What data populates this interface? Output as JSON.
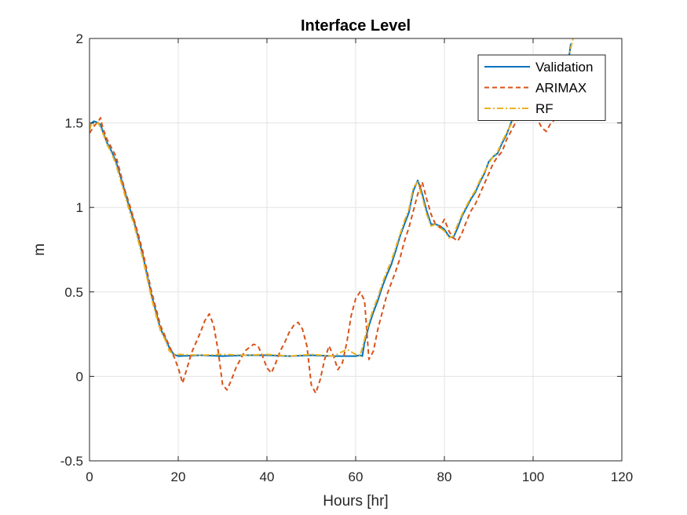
{
  "chart_data": {
    "type": "line",
    "title": "Interface Level",
    "xlabel": "Hours [hr]",
    "ylabel": "m",
    "xlim": [
      0,
      120
    ],
    "ylim": [
      -0.5,
      2
    ],
    "xticks": [
      0,
      20,
      40,
      60,
      80,
      100,
      120
    ],
    "yticks": [
      -0.5,
      0,
      0.5,
      1,
      1.5,
      2
    ],
    "xtick_labels": [
      "0",
      "20",
      "40",
      "60",
      "80",
      "100",
      "120"
    ],
    "ytick_labels": [
      "-0.5",
      "0",
      "0.5",
      "1",
      "1.5",
      "2"
    ],
    "grid": true,
    "legend_position": "top-right",
    "series": [
      {
        "name": "Validation",
        "color": "#0072BD",
        "dash": "solid",
        "x": [
          0,
          0.5,
          1,
          2,
          2.5,
          3,
          4,
          5,
          6,
          7,
          8,
          9,
          10,
          11,
          12,
          13,
          14,
          15,
          16,
          17,
          18,
          19,
          20,
          25,
          30,
          35,
          40,
          45,
          50,
          55,
          60,
          61,
          61.5,
          62,
          63,
          64,
          65,
          66,
          67,
          68,
          69,
          70,
          71,
          72,
          73,
          74,
          75,
          76,
          77,
          78,
          79,
          80,
          81,
          82,
          83,
          84,
          85,
          86,
          87,
          88,
          89,
          90,
          91,
          92,
          93,
          94,
          95,
          96,
          97,
          98,
          99,
          100,
          101,
          102,
          103,
          104,
          105,
          106,
          107,
          108,
          108.5
        ],
        "y": [
          1.47,
          1.5,
          1.51,
          1.5,
          1.49,
          1.45,
          1.38,
          1.33,
          1.27,
          1.18,
          1.09,
          1.0,
          0.92,
          0.82,
          0.72,
          0.6,
          0.48,
          0.38,
          0.28,
          0.23,
          0.17,
          0.13,
          0.12,
          0.125,
          0.12,
          0.125,
          0.125,
          0.12,
          0.125,
          0.12,
          0.12,
          0.125,
          0.12,
          0.2,
          0.3,
          0.38,
          0.45,
          0.53,
          0.6,
          0.66,
          0.74,
          0.83,
          0.9,
          0.97,
          1.1,
          1.16,
          1.08,
          0.98,
          0.9,
          0.9,
          0.89,
          0.87,
          0.83,
          0.82,
          0.88,
          0.95,
          1.0,
          1.05,
          1.09,
          1.15,
          1.2,
          1.27,
          1.3,
          1.32,
          1.38,
          1.43,
          1.5,
          1.56,
          1.6,
          1.63,
          1.68,
          1.63,
          1.57,
          1.55,
          1.53,
          1.52,
          1.52,
          1.6,
          1.74,
          1.87,
          1.97
        ]
      },
      {
        "name": "ARIMAX",
        "color": "#D95319",
        "dash": "6,4",
        "x": [
          0,
          1,
          2,
          2.5,
          3,
          4,
          5,
          6,
          7,
          8,
          9,
          10,
          11,
          12,
          13,
          14,
          15,
          16,
          17,
          18,
          19,
          20,
          21,
          22,
          23,
          24,
          25,
          26,
          27,
          28,
          29,
          30,
          31,
          32,
          33,
          34,
          35,
          36,
          37,
          38,
          39,
          40,
          41,
          42,
          43,
          44,
          45,
          46,
          47,
          48,
          49,
          50,
          51,
          52,
          53,
          54,
          55,
          56,
          57,
          58,
          59,
          60,
          61,
          62,
          63,
          64,
          65,
          66,
          67,
          68,
          69,
          70,
          71,
          72,
          73,
          74,
          75,
          76,
          77,
          78,
          79,
          80,
          81,
          82,
          83,
          84,
          85,
          86,
          87,
          88,
          89,
          90,
          91,
          92,
          93,
          94,
          95,
          96,
          97,
          98,
          99,
          100,
          101,
          102,
          103,
          104,
          105,
          106,
          107,
          108
        ],
        "y": [
          1.44,
          1.48,
          1.51,
          1.53,
          1.47,
          1.4,
          1.35,
          1.3,
          1.2,
          1.1,
          1.02,
          0.93,
          0.84,
          0.74,
          0.62,
          0.5,
          0.4,
          0.3,
          0.24,
          0.18,
          0.12,
          0.05,
          -0.04,
          0.05,
          0.14,
          0.2,
          0.26,
          0.33,
          0.37,
          0.3,
          0.15,
          -0.05,
          -0.08,
          -0.02,
          0.05,
          0.1,
          0.15,
          0.17,
          0.19,
          0.18,
          0.12,
          0.05,
          0.02,
          0.08,
          0.15,
          0.2,
          0.26,
          0.3,
          0.32,
          0.28,
          0.18,
          -0.05,
          -0.1,
          -0.02,
          0.1,
          0.18,
          0.12,
          0.04,
          0.08,
          0.2,
          0.36,
          0.46,
          0.5,
          0.45,
          0.1,
          0.15,
          0.28,
          0.38,
          0.48,
          0.55,
          0.62,
          0.7,
          0.8,
          0.88,
          0.98,
          1.08,
          1.15,
          1.05,
          0.96,
          0.9,
          0.88,
          0.93,
          0.86,
          0.82,
          0.8,
          0.85,
          0.92,
          0.98,
          1.02,
          1.08,
          1.14,
          1.2,
          1.26,
          1.3,
          1.33,
          1.4,
          1.45,
          1.5,
          1.55,
          1.6,
          1.58,
          1.55,
          1.52,
          1.47,
          1.45,
          1.5,
          1.52,
          1.58,
          1.7,
          1.85
        ]
      },
      {
        "name": "RF",
        "color": "#EDB120",
        "dash": "8,3,2,3",
        "x": [
          0,
          0.5,
          1,
          2,
          3,
          4,
          5,
          6,
          7,
          8,
          9,
          10,
          11,
          12,
          13,
          14,
          15,
          16,
          17,
          18,
          19,
          20,
          25,
          30,
          35,
          40,
          45,
          50,
          55,
          58,
          60,
          61,
          62,
          63,
          64,
          65,
          66,
          67,
          68,
          69,
          70,
          71,
          72,
          73,
          74,
          75,
          76,
          77,
          78,
          79,
          80,
          81,
          82,
          83,
          84,
          85,
          86,
          87,
          88,
          89,
          90,
          91,
          92,
          93,
          94,
          95,
          96,
          97,
          98,
          99,
          100,
          101,
          102,
          103,
          104,
          105,
          106,
          107,
          108,
          109
        ],
        "y": [
          1.46,
          1.5,
          1.49,
          1.5,
          1.44,
          1.37,
          1.32,
          1.25,
          1.16,
          1.07,
          0.98,
          0.9,
          0.8,
          0.7,
          0.58,
          0.46,
          0.36,
          0.27,
          0.22,
          0.15,
          0.13,
          0.13,
          0.125,
          0.13,
          0.125,
          0.13,
          0.12,
          0.13,
          0.12,
          0.16,
          0.13,
          0.12,
          0.22,
          0.32,
          0.4,
          0.47,
          0.55,
          0.62,
          0.68,
          0.76,
          0.84,
          0.92,
          0.99,
          1.12,
          1.15,
          1.06,
          0.96,
          0.89,
          0.9,
          0.88,
          0.86,
          0.82,
          0.83,
          0.9,
          0.96,
          1.01,
          1.06,
          1.1,
          1.16,
          1.21,
          1.26,
          1.3,
          1.33,
          1.39,
          1.44,
          1.49,
          1.55,
          1.59,
          1.62,
          1.66,
          1.62,
          1.56,
          1.54,
          1.53,
          1.51,
          1.53,
          1.62,
          1.76,
          1.89,
          2.0
        ]
      }
    ]
  }
}
